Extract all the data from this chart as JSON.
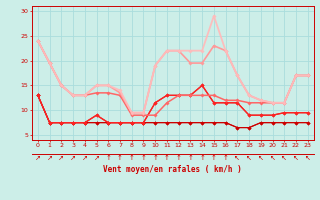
{
  "background_color": "#cceee8",
  "grid_color": "#aadddd",
  "xlabel": "Vent moyen/en rafales ( km/h )",
  "xlim": [
    -0.5,
    23.5
  ],
  "ylim": [
    4,
    31
  ],
  "yticks": [
    5,
    10,
    15,
    20,
    25,
    30
  ],
  "xticks": [
    0,
    1,
    2,
    3,
    4,
    5,
    6,
    7,
    8,
    9,
    10,
    11,
    12,
    13,
    14,
    15,
    16,
    17,
    18,
    19,
    20,
    21,
    22,
    23
  ],
  "series": [
    {
      "color": "#cc0000",
      "alpha": 1.0,
      "lw": 0.8,
      "marker": "D",
      "ms": 1.8,
      "y": [
        13,
        7.5,
        7.5,
        7.5,
        7.5,
        7.5,
        7.5,
        7.5,
        7.5,
        7.5,
        7.5,
        7.5,
        7.5,
        7.5,
        7.5,
        7.5,
        7.5,
        6.5,
        6.5,
        7.5,
        7.5,
        7.5,
        7.5,
        7.5
      ]
    },
    {
      "color": "#cc0000",
      "alpha": 1.0,
      "lw": 0.8,
      "marker": "D",
      "ms": 1.8,
      "y": [
        13,
        7.5,
        7.5,
        7.5,
        7.5,
        7.5,
        7.5,
        7.5,
        7.5,
        7.5,
        7.5,
        7.5,
        7.5,
        7.5,
        7.5,
        7.5,
        7.5,
        6.5,
        6.5,
        7.5,
        7.5,
        7.5,
        7.5,
        7.5
      ]
    },
    {
      "color": "#dd2222",
      "alpha": 1.0,
      "lw": 0.9,
      "marker": "D",
      "ms": 1.8,
      "y": [
        13,
        7.5,
        7.5,
        7.5,
        7.5,
        9,
        7.5,
        7.5,
        7.5,
        7.5,
        11.5,
        13,
        13,
        13,
        15,
        11.5,
        11.5,
        11.5,
        9,
        9,
        9,
        9.5,
        9.5,
        9.5
      ]
    },
    {
      "color": "#ff2222",
      "alpha": 1.0,
      "lw": 0.9,
      "marker": "D",
      "ms": 1.8,
      "y": [
        13,
        7.5,
        7.5,
        7.5,
        7.5,
        9,
        7.5,
        7.5,
        7.5,
        7.5,
        11.5,
        13,
        13,
        13,
        15,
        11.5,
        11.5,
        11.5,
        9,
        9,
        9,
        9.5,
        9.5,
        9.5
      ]
    },
    {
      "color": "#ff6666",
      "alpha": 1.0,
      "lw": 1.1,
      "marker": "D",
      "ms": 1.8,
      "y": [
        24,
        19.5,
        15,
        13,
        13,
        13.5,
        13.5,
        13,
        9,
        9,
        9,
        11.5,
        13,
        13,
        13,
        13,
        12,
        12,
        11.5,
        11.5,
        11.5,
        11.5,
        17,
        17
      ]
    },
    {
      "color": "#ff9999",
      "alpha": 1.0,
      "lw": 1.2,
      "marker": "D",
      "ms": 1.8,
      "y": [
        24,
        19.5,
        15,
        13,
        13,
        15,
        15,
        13.5,
        9.5,
        9.5,
        19,
        22,
        22,
        19.5,
        19.5,
        23,
        22,
        17,
        13,
        12,
        11.5,
        11.5,
        17,
        17
      ]
    },
    {
      "color": "#ffbbbb",
      "alpha": 0.95,
      "lw": 1.3,
      "marker": "D",
      "ms": 1.8,
      "y": [
        24,
        19.5,
        15,
        13,
        13,
        15,
        15,
        14,
        9.5,
        9.5,
        19,
        22,
        22,
        22,
        22,
        29,
        22,
        17,
        13,
        12,
        11.5,
        11.5,
        17,
        17
      ]
    }
  ],
  "wind_arrows": [
    "↗",
    "↗",
    "↗",
    "↗",
    "↗",
    "↗",
    "↑",
    "↑",
    "↑",
    "↑",
    "↑",
    "↑",
    "↑",
    "↑",
    "↑",
    "↑",
    "↑",
    "↖",
    "↖",
    "↖",
    "↖",
    "↖",
    "↖",
    "↖"
  ]
}
